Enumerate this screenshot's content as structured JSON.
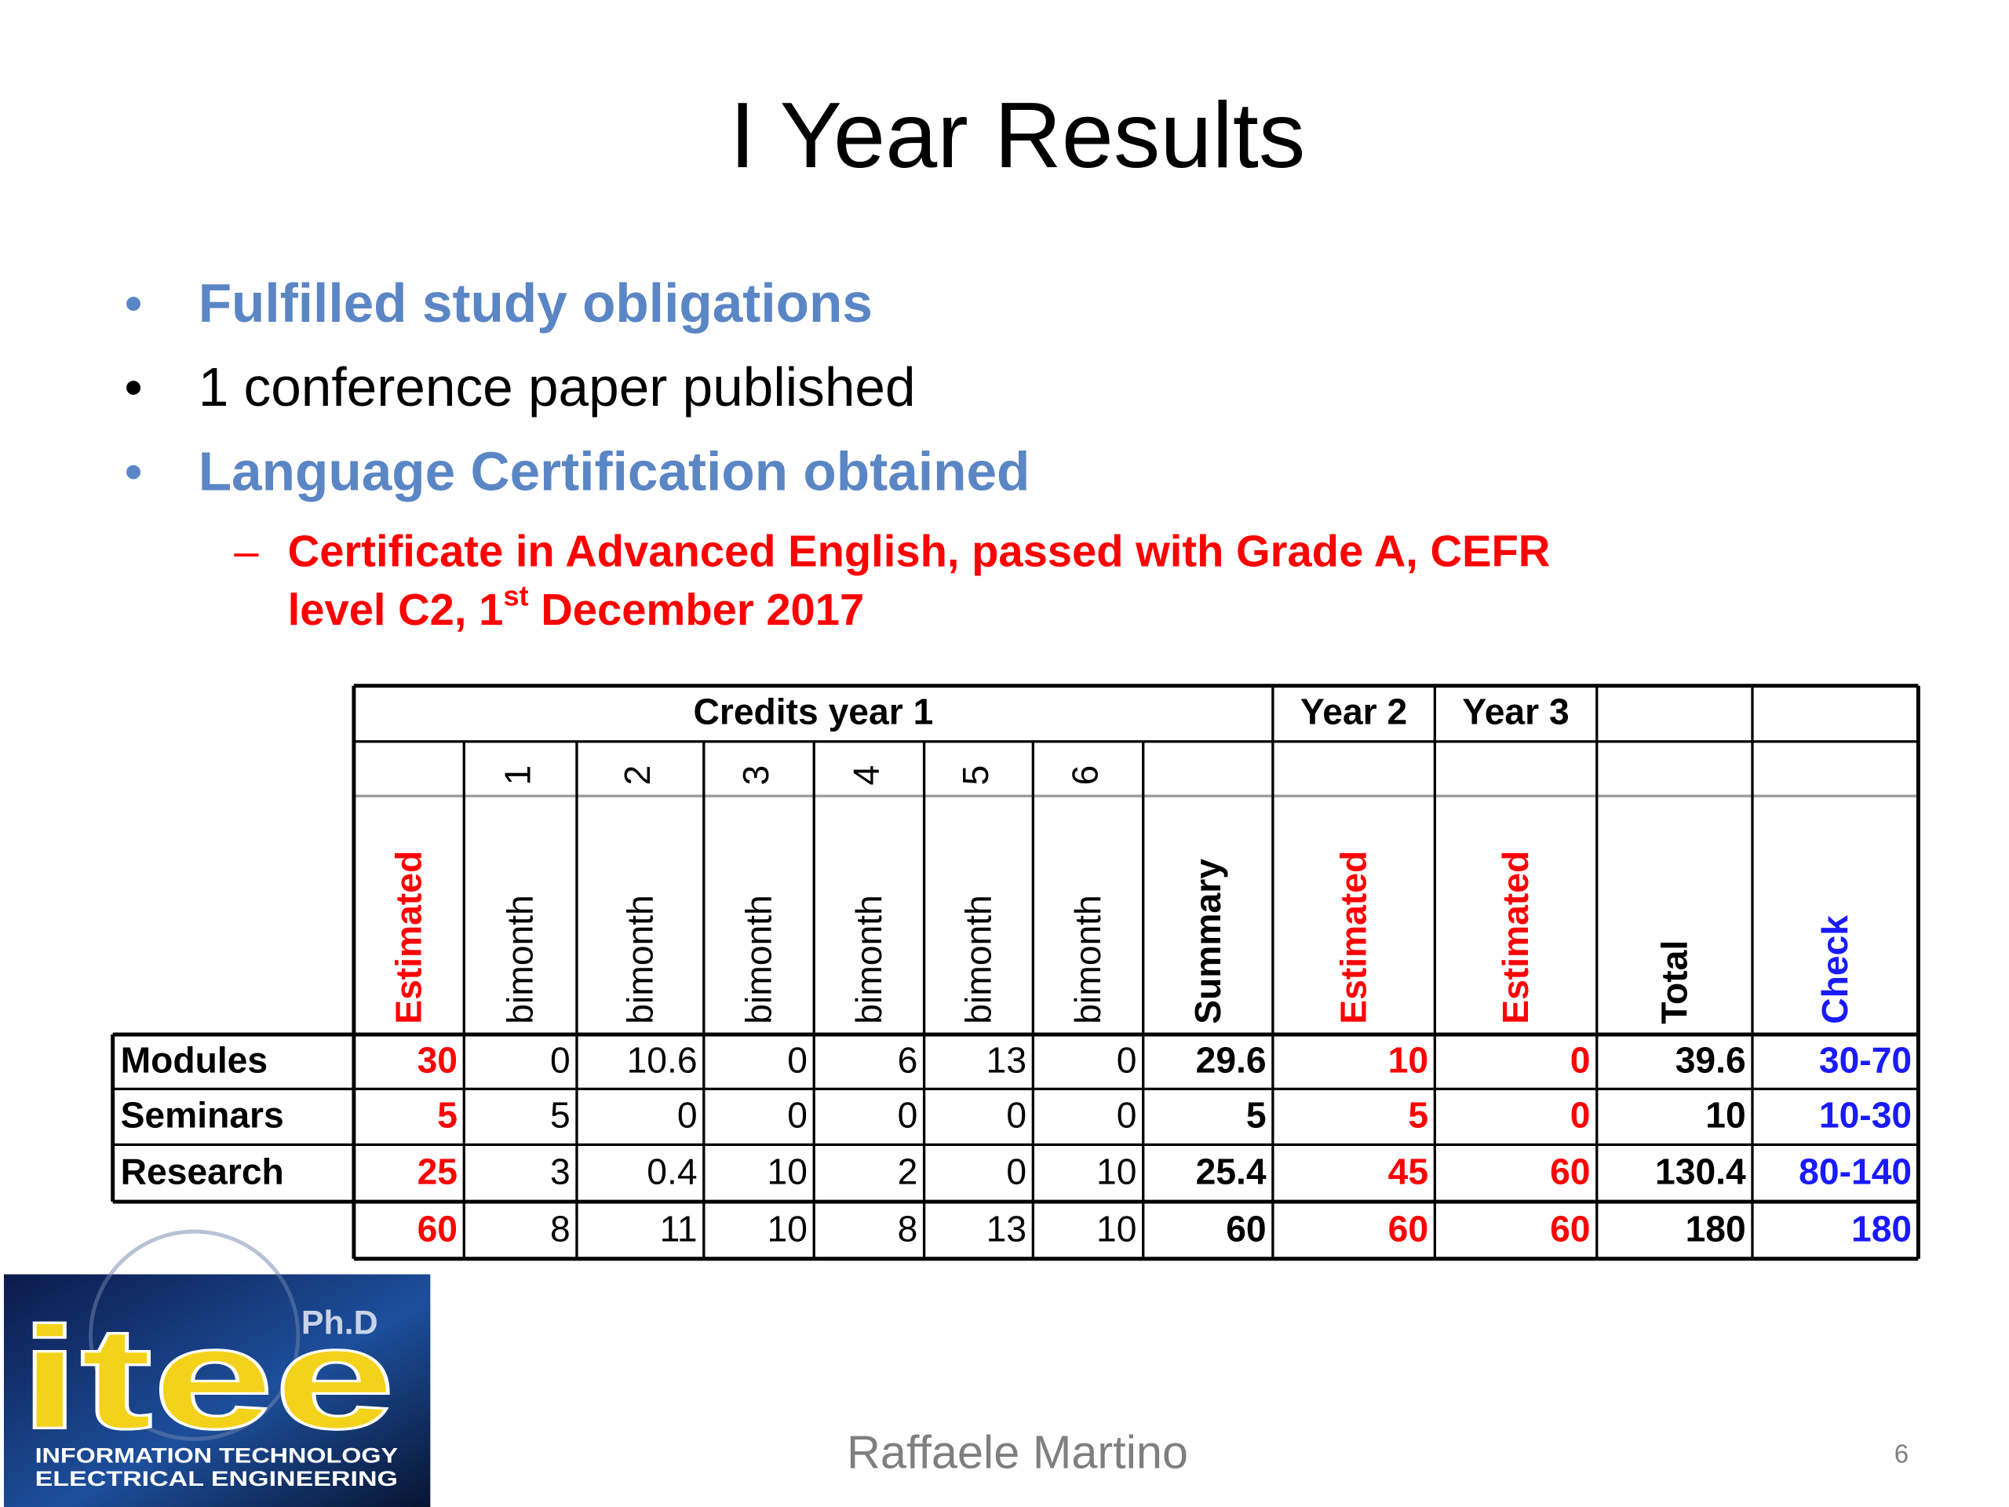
{
  "header": {
    "title": "I Year Results"
  },
  "bullets": [
    {
      "text": "Fulfilled study obligations"
    },
    {
      "text": "1 conference paper published"
    },
    {
      "text": "Language Certification obtained"
    }
  ],
  "sub_bullet": {
    "parts": [
      "Certificate in Advanced English, passed with Grade A, CEFR",
      "level C2, 1",
      "st",
      " December 2017"
    ]
  },
  "table": {
    "group_headers": [
      "Credits year 1",
      "Year 2",
      "Year 3"
    ],
    "bimonth_numbers": [
      "1",
      "2",
      "3",
      "4",
      "5",
      "6"
    ],
    "column_headers": [
      "Estimated",
      "bimonth",
      "bimonth",
      "bimonth",
      "bimonth",
      "bimonth",
      "bimonth",
      "Summary",
      "Estimated",
      "Estimated",
      "Total",
      "Check"
    ],
    "rows": [
      {
        "label": "Modules",
        "cells": [
          "30",
          "0",
          "10.6",
          "0",
          "6",
          "13",
          "0",
          "29.6",
          "10",
          "0",
          "39.6",
          "30-70"
        ]
      },
      {
        "label": "Seminars",
        "cells": [
          "5",
          "5",
          "0",
          "0",
          "0",
          "0",
          "0",
          "5",
          "5",
          "0",
          "10",
          "10-30"
        ]
      },
      {
        "label": "Research",
        "cells": [
          "25",
          "3",
          "0.4",
          "10",
          "2",
          "0",
          "10",
          "25.4",
          "45",
          "60",
          "130.4",
          "80-140"
        ]
      }
    ],
    "totals": [
      "60",
      "8",
      "11",
      "10",
      "8",
      "13",
      "10",
      "60",
      "60",
      "60",
      "180",
      "180"
    ]
  },
  "logo": {
    "badge": "Ph.D",
    "name": "itee",
    "line1": "INFORMATION TECHNOLOGY",
    "line2": "ELECTRICAL ENGINEERING"
  },
  "footer": {
    "author": "Raffaele Martino",
    "page": "6"
  }
}
